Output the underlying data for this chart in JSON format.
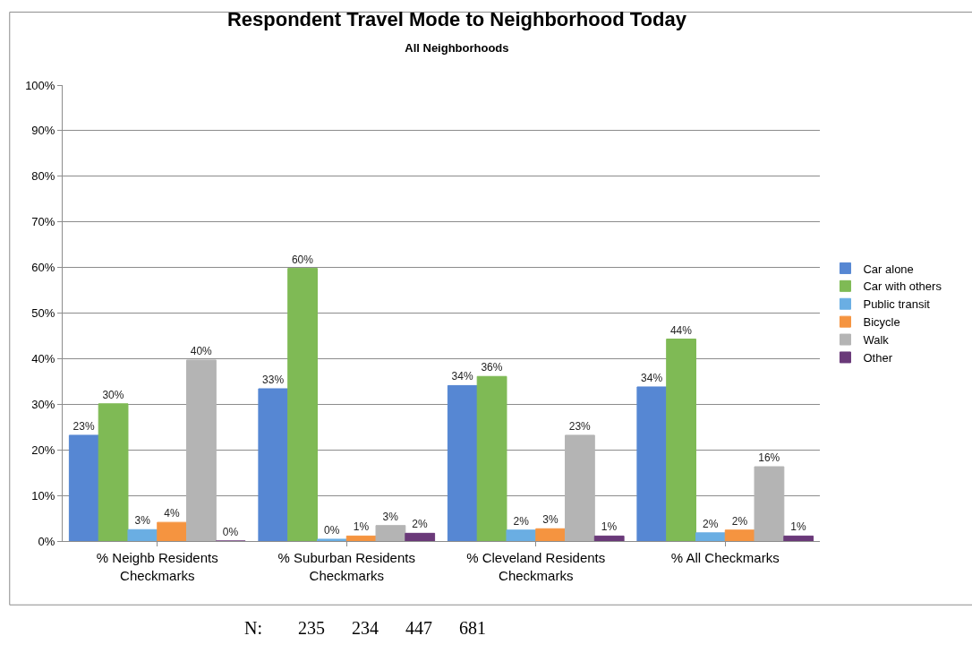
{
  "chart_data": {
    "type": "bar",
    "title": "Respondent Travel Mode to Neighborhood Today",
    "subtitle": "All Neighborhoods",
    "categories": [
      "% Neighb Residents\nCheckmarks",
      "% Suburban Residents\nCheckmarks",
      "% Cleveland Residents\nCheckmarks",
      "% All Checkmarks"
    ],
    "series": [
      {
        "name": "Car alone",
        "color": "#5687d3",
        "values": [
          23.2,
          33.4,
          34.1,
          33.8
        ],
        "value_labels": [
          "23%",
          "33%",
          "34%",
          "34%"
        ]
      },
      {
        "name": "Car with others",
        "color": "#7fba55",
        "values": [
          30.1,
          59.8,
          36.1,
          44.3
        ],
        "value_labels": [
          "30%",
          "60%",
          "36%",
          "44%"
        ]
      },
      {
        "name": "Public transit",
        "color": "#6aaee3",
        "values": [
          2.5,
          0.4,
          2.4,
          1.8
        ],
        "value_labels": [
          "3%",
          "0%",
          "2%",
          "2%"
        ]
      },
      {
        "name": "Bicycle",
        "color": "#f59440",
        "values": [
          4.1,
          1.1,
          2.7,
          2.4
        ],
        "value_labels": [
          "4%",
          "1%",
          "3%",
          "2%"
        ]
      },
      {
        "name": "Walk",
        "color": "#b4b4b4",
        "values": [
          39.7,
          3.4,
          23.2,
          16.3
        ],
        "value_labels": [
          "40%",
          "3%",
          "23%",
          "16%"
        ]
      },
      {
        "name": "Other",
        "color": "#6a3979",
        "values": [
          0,
          1.7,
          1.1,
          1.1
        ],
        "value_labels": [
          "0%",
          "2%",
          "1%",
          "1%"
        ]
      }
    ],
    "ylim": [
      0,
      100
    ],
    "yticks": [
      {
        "value": 0,
        "label": "0%"
      },
      {
        "value": 10,
        "label": "10%"
      },
      {
        "value": 20,
        "label": "20%"
      },
      {
        "value": 30,
        "label": "30%"
      },
      {
        "value": 40,
        "label": "40%"
      },
      {
        "value": 50,
        "label": "50%"
      },
      {
        "value": 60,
        "label": "60%"
      },
      {
        "value": 70,
        "label": "70%"
      },
      {
        "value": 80,
        "label": "80%"
      },
      {
        "value": 90,
        "label": "90%"
      },
      {
        "value": 100,
        "label": "100%"
      }
    ],
    "grid": "y",
    "legend": "right",
    "annotations": [
      "N:        235      234      447      681"
    ]
  }
}
